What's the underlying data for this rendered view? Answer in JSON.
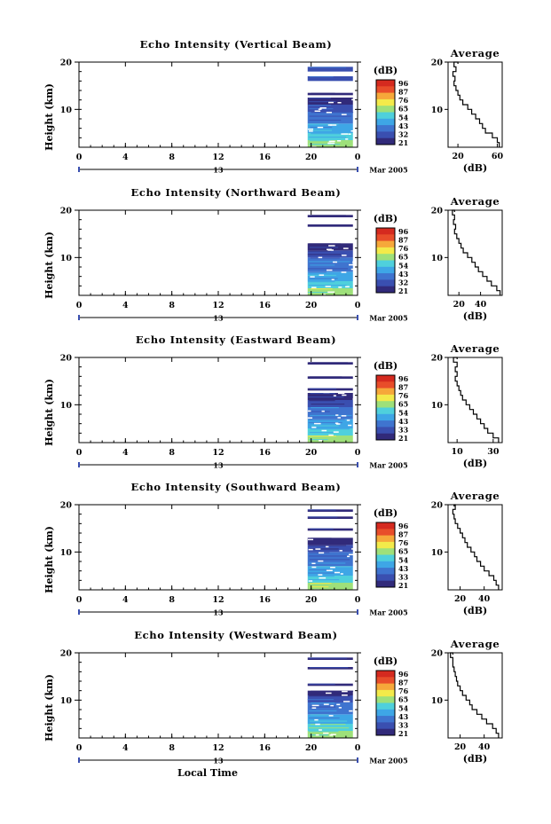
{
  "figure": {
    "month_label": "Mar 2005",
    "date_marker_label": "13",
    "x_axis_label": "Local Time",
    "y_axis_label": "Height (km)",
    "colorbar_unit": "(dB)",
    "profile_title": "Average",
    "profile_xlabel": "(dB)"
  },
  "colors": {
    "scale": [
      "#312a7a",
      "#3a4fb0",
      "#3f74cf",
      "#3ea6e6",
      "#4fd0dc",
      "#9ee07a",
      "#f3ea4a",
      "#f6a83a",
      "#e84d2a",
      "#d52a1f"
    ],
    "white_speckle": "#ffffff"
  },
  "chart_data": [
    {
      "type": "heatmap",
      "title": "Echo Intensity (Vertical Beam)",
      "xlabel": "",
      "ylabel": "Height (km)",
      "x_ticks": [
        "0",
        "4",
        "8",
        "12",
        "16",
        "20",
        "0"
      ],
      "xlim": [
        0,
        24
      ],
      "y_ticks": [
        "20",
        "10"
      ],
      "ylim": [
        2,
        20
      ],
      "data_x_range": [
        19.7,
        23.6
      ],
      "data_top_km": 19.0,
      "layers": [
        {
          "from_km": 2.0,
          "to_km": 3.5,
          "level": 5
        },
        {
          "from_km": 3.5,
          "to_km": 5.0,
          "level": 4
        },
        {
          "from_km": 5.0,
          "to_km": 7.0,
          "level": 3
        },
        {
          "from_km": 7.0,
          "to_km": 9.5,
          "level": 2
        },
        {
          "from_km": 9.5,
          "to_km": 11.0,
          "level": 1
        },
        {
          "from_km": 11.0,
          "to_km": 12.5,
          "level": 0
        },
        {
          "from_km": 13.0,
          "to_km": 13.5,
          "level": 0
        },
        {
          "from_km": 16.0,
          "to_km": 17.0,
          "level": 1
        },
        {
          "from_km": 18.0,
          "to_km": 19.0,
          "level": 1
        }
      ],
      "colorbar_ticks": [
        "96",
        "87",
        "76",
        "65",
        "54",
        "43",
        "32",
        "21"
      ],
      "profile": {
        "xticks": [
          "20",
          "60"
        ],
        "xlim": [
          10,
          65
        ],
        "heights": [
          2,
          3,
          4,
          5,
          6,
          7,
          8,
          9,
          10,
          11,
          12,
          13,
          14,
          15,
          16,
          17,
          18,
          19,
          20
        ],
        "values": [
          62,
          60,
          55,
          48,
          45,
          42,
          38,
          34,
          30,
          25,
          22,
          20,
          18,
          16,
          17,
          15,
          18,
          16,
          20
        ]
      }
    },
    {
      "type": "heatmap",
      "title": "Echo Intensity (Northward Beam)",
      "xlabel": "",
      "ylabel": "Height (km)",
      "x_ticks": [
        "0",
        "4",
        "8",
        "12",
        "16",
        "20",
        "0"
      ],
      "xlim": [
        0,
        24
      ],
      "y_ticks": [
        "20",
        "10"
      ],
      "ylim": [
        2,
        20
      ],
      "data_x_range": [
        19.7,
        23.6
      ],
      "data_top_km": 19.0,
      "layers": [
        {
          "from_km": 2.0,
          "to_km": 3.5,
          "level": 5
        },
        {
          "from_km": 3.5,
          "to_km": 5.0,
          "level": 4
        },
        {
          "from_km": 5.0,
          "to_km": 7.0,
          "level": 3
        },
        {
          "from_km": 7.0,
          "to_km": 10.0,
          "level": 2
        },
        {
          "from_km": 10.0,
          "to_km": 11.5,
          "level": 1
        },
        {
          "from_km": 11.5,
          "to_km": 13.0,
          "level": 0
        },
        {
          "from_km": 16.5,
          "to_km": 17.0,
          "level": 0
        },
        {
          "from_km": 18.5,
          "to_km": 19.0,
          "level": 0
        }
      ],
      "colorbar_ticks": [
        "96",
        "87",
        "76",
        "65",
        "54",
        "43",
        "32",
        "21"
      ],
      "profile": {
        "xticks": [
          "20",
          "40"
        ],
        "xlim": [
          10,
          60
        ],
        "heights": [
          2,
          3,
          4,
          5,
          6,
          7,
          8,
          9,
          10,
          11,
          12,
          13,
          14,
          15,
          16,
          17,
          18,
          19,
          20
        ],
        "values": [
          58,
          55,
          50,
          46,
          42,
          38,
          35,
          32,
          28,
          24,
          22,
          20,
          18,
          16,
          17,
          15,
          16,
          14,
          16
        ]
      }
    },
    {
      "type": "heatmap",
      "title": "Echo Intensity (Eastward Beam)",
      "xlabel": "",
      "ylabel": "Height (km)",
      "x_ticks": [
        "0",
        "4",
        "8",
        "12",
        "16",
        "20",
        "0"
      ],
      "xlim": [
        0,
        24
      ],
      "y_ticks": [
        "20",
        "10"
      ],
      "ylim": [
        2,
        20
      ],
      "data_x_range": [
        19.7,
        23.6
      ],
      "data_top_km": 19.0,
      "layers": [
        {
          "from_km": 2.0,
          "to_km": 3.5,
          "level": 5
        },
        {
          "from_km": 3.5,
          "to_km": 5.0,
          "level": 4
        },
        {
          "from_km": 5.0,
          "to_km": 7.0,
          "level": 3
        },
        {
          "from_km": 7.0,
          "to_km": 9.5,
          "level": 2
        },
        {
          "from_km": 9.5,
          "to_km": 11.0,
          "level": 1
        },
        {
          "from_km": 11.0,
          "to_km": 12.5,
          "level": 0
        },
        {
          "from_km": 13.0,
          "to_km": 13.5,
          "level": 0
        },
        {
          "from_km": 15.5,
          "to_km": 16.0,
          "level": 0
        },
        {
          "from_km": 18.5,
          "to_km": 19.0,
          "level": 0
        }
      ],
      "colorbar_ticks": [
        "96",
        "87",
        "76",
        "65",
        "54",
        "43",
        "33",
        "21"
      ],
      "profile": {
        "xticks": [
          "10",
          "30"
        ],
        "xlim": [
          5,
          35
        ],
        "heights": [
          2,
          3,
          4,
          5,
          6,
          7,
          8,
          9,
          10,
          11,
          12,
          13,
          14,
          15,
          16,
          17,
          18,
          19,
          20
        ],
        "values": [
          33,
          30,
          27,
          25,
          23,
          21,
          19,
          17,
          15,
          13,
          12,
          11,
          10,
          9,
          10,
          9,
          10,
          8,
          10
        ]
      }
    },
    {
      "type": "heatmap",
      "title": "Echo Intensity (Southward Beam)",
      "xlabel": "",
      "ylabel": "Height (km)",
      "x_ticks": [
        "0",
        "4",
        "8",
        "12",
        "16",
        "20",
        "0"
      ],
      "xlim": [
        0,
        24
      ],
      "y_ticks": [
        "20",
        "10"
      ],
      "ylim": [
        2,
        20
      ],
      "data_x_range": [
        19.7,
        23.6
      ],
      "data_top_km": 19.0,
      "layers": [
        {
          "from_km": 2.0,
          "to_km": 3.5,
          "level": 5
        },
        {
          "from_km": 3.5,
          "to_km": 5.0,
          "level": 4
        },
        {
          "from_km": 5.0,
          "to_km": 7.0,
          "level": 3
        },
        {
          "from_km": 7.0,
          "to_km": 10.0,
          "level": 2
        },
        {
          "from_km": 10.0,
          "to_km": 11.5,
          "level": 1
        },
        {
          "from_km": 11.5,
          "to_km": 13.0,
          "level": 0
        },
        {
          "from_km": 14.5,
          "to_km": 15.0,
          "level": 0
        },
        {
          "from_km": 17.0,
          "to_km": 17.5,
          "level": 0
        },
        {
          "from_km": 18.5,
          "to_km": 19.0,
          "level": 0
        }
      ],
      "colorbar_ticks": [
        "96",
        "87",
        "76",
        "65",
        "54",
        "43",
        "33",
        "21"
      ],
      "profile": {
        "xticks": [
          "20",
          "40"
        ],
        "xlim": [
          10,
          55
        ],
        "heights": [
          2,
          3,
          4,
          5,
          6,
          7,
          8,
          9,
          10,
          11,
          12,
          13,
          14,
          15,
          16,
          17,
          18,
          19,
          20
        ],
        "values": [
          52,
          50,
          48,
          44,
          40,
          37,
          34,
          32,
          29,
          26,
          24,
          22,
          20,
          18,
          16,
          15,
          14,
          16,
          15
        ]
      }
    },
    {
      "type": "heatmap",
      "title": "Echo Intensity (Westward Beam)",
      "xlabel": "Local Time",
      "ylabel": "Height (km)",
      "x_ticks": [
        "0",
        "4",
        "8",
        "12",
        "16",
        "20",
        "0"
      ],
      "xlim": [
        0,
        24
      ],
      "y_ticks": [
        "20",
        "10"
      ],
      "ylim": [
        2,
        20
      ],
      "data_x_range": [
        19.7,
        23.6
      ],
      "data_top_km": 19.0,
      "layers": [
        {
          "from_km": 2.0,
          "to_km": 3.5,
          "level": 5
        },
        {
          "from_km": 3.5,
          "to_km": 5.0,
          "level": 4
        },
        {
          "from_km": 5.0,
          "to_km": 7.0,
          "level": 3
        },
        {
          "from_km": 7.0,
          "to_km": 9.5,
          "level": 2
        },
        {
          "from_km": 9.5,
          "to_km": 11.0,
          "level": 1
        },
        {
          "from_km": 11.0,
          "to_km": 12.0,
          "level": 0
        },
        {
          "from_km": 13.0,
          "to_km": 13.5,
          "level": 0
        },
        {
          "from_km": 16.5,
          "to_km": 17.0,
          "level": 0
        },
        {
          "from_km": 18.5,
          "to_km": 19.0,
          "level": 0
        }
      ],
      "colorbar_ticks": [
        "96",
        "87",
        "76",
        "65",
        "54",
        "43",
        "33",
        "21"
      ],
      "profile": {
        "xticks": [
          "20",
          "40"
        ],
        "xlim": [
          10,
          55
        ],
        "heights": [
          2,
          3,
          4,
          5,
          6,
          7,
          8,
          9,
          10,
          11,
          12,
          13,
          14,
          15,
          16,
          17,
          18,
          19,
          20
        ],
        "values": [
          52,
          50,
          47,
          42,
          38,
          34,
          30,
          28,
          25,
          22,
          20,
          18,
          17,
          16,
          15,
          14,
          14,
          12,
          14
        ]
      }
    }
  ]
}
